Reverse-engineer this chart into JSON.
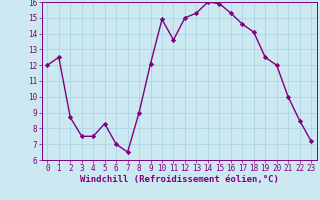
{
  "hours": [
    0,
    1,
    2,
    3,
    4,
    5,
    6,
    7,
    8,
    9,
    10,
    11,
    12,
    13,
    14,
    15,
    16,
    17,
    18,
    19,
    20,
    21,
    22,
    23
  ],
  "values": [
    12.0,
    12.5,
    8.7,
    7.5,
    7.5,
    8.3,
    7.0,
    6.5,
    9.0,
    12.1,
    14.9,
    13.6,
    15.0,
    15.3,
    16.0,
    15.9,
    15.3,
    14.6,
    14.1,
    12.5,
    12.0,
    10.0,
    8.5,
    7.2
  ],
  "line_color": "#800080",
  "marker": "D",
  "marker_size": 2.2,
  "bg_color": "#cce8f0",
  "grid_color": "#b0d8e8",
  "ylim": [
    6,
    16
  ],
  "xlim_min": -0.5,
  "xlim_max": 23.5,
  "yticks": [
    6,
    7,
    8,
    9,
    10,
    11,
    12,
    13,
    14,
    15,
    16
  ],
  "xticks": [
    0,
    1,
    2,
    3,
    4,
    5,
    6,
    7,
    8,
    9,
    10,
    11,
    12,
    13,
    14,
    15,
    16,
    17,
    18,
    19,
    20,
    21,
    22,
    23
  ],
  "tick_color": "#800080",
  "tick_fontsize": 5.5,
  "xlabel": "Windchill (Refroidissement éolien,°C)",
  "xlabel_fontsize": 6.5,
  "xlabel_color": "#800080",
  "line_width": 1.0,
  "spine_color": "#800080"
}
